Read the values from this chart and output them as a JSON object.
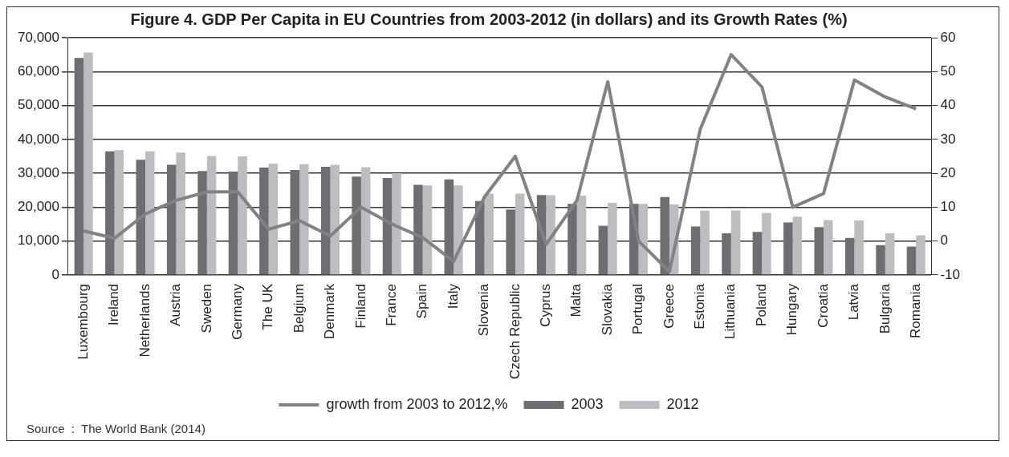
{
  "chart_data": {
    "type": "bar",
    "title": "Figure 4. GDP Per Capita in EU Countries from 2003-2012 (in dollars) and its Growth Rates (%)",
    "categories": [
      "Luxembourg",
      "Ireland",
      "Netherlands",
      "Austria",
      "Sweden",
      "Germany",
      "The UK",
      "Belgium",
      "Denmark",
      "Finland",
      "France",
      "Spain",
      "Italy",
      "Slovenia",
      "Czech Republic",
      "Cyprus",
      "Malta",
      "Slovakia",
      "Portugal",
      "Greece",
      "Estonia",
      "Lithuania",
      "Poland",
      "Hungary",
      "Croatia",
      "Latvia",
      "Bulgaria",
      "Romania"
    ],
    "series": [
      {
        "name": "2003",
        "color": "#6d6e71",
        "values": [
          64000,
          36500,
          34000,
          32500,
          30700,
          30500,
          31700,
          31000,
          31900,
          29000,
          28600,
          26600,
          28200,
          21800,
          19300,
          23600,
          21000,
          14500,
          21000,
          23000,
          14300,
          12300,
          12700,
          15500,
          14100,
          10900,
          8800,
          8400
        ]
      },
      {
        "name": "2012",
        "color": "#bcbdc0",
        "values": [
          65600,
          36800,
          36500,
          36100,
          35100,
          35000,
          32800,
          32700,
          32500,
          31800,
          30000,
          26400,
          26400,
          24000,
          24000,
          23500,
          23400,
          21300,
          21000,
          20800,
          19000,
          19000,
          18300,
          17200,
          16200,
          16100,
          12300,
          11700
        ]
      },
      {
        "name": "growth from 2003 to 2012,%",
        "type": "line",
        "axis": "y2",
        "color": "#808285",
        "values": [
          3,
          0.8,
          8,
          12,
          14.5,
          14.5,
          3.5,
          6,
          1.5,
          10,
          5,
          1,
          -6,
          13,
          25,
          -1,
          12,
          47,
          0,
          -9,
          33,
          55,
          45.5,
          10,
          14,
          47.5,
          42.5,
          39
        ]
      }
    ],
    "ylim": [
      0,
      70000
    ],
    "yticks": [
      {
        "value": 0,
        "label": "0"
      },
      {
        "value": 10000,
        "label": "10,000"
      },
      {
        "value": 20000,
        "label": "20,000"
      },
      {
        "value": 30000,
        "label": "30,000"
      },
      {
        "value": 40000,
        "label": "40,000"
      },
      {
        "value": 50000,
        "label": "50,000"
      },
      {
        "value": 60000,
        "label": "60,000"
      },
      {
        "value": 70000,
        "label": "70,000"
      }
    ],
    "y2lim": [
      -10,
      60
    ],
    "y2ticks": [
      -10,
      0,
      10,
      20,
      30,
      40,
      50,
      60
    ],
    "grid": "y",
    "legend": "bottom",
    "marker": "none",
    "annotations": [
      "Source  :  The World Bank (2014)"
    ]
  }
}
